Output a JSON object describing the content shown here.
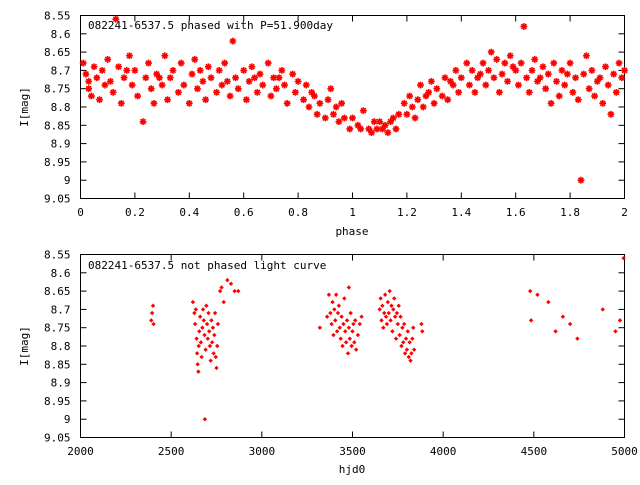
{
  "colors": {
    "marker": "#ff0000",
    "axis": "#000000",
    "background": "#ffffff"
  },
  "chart_data": [
    {
      "type": "scatter",
      "title": "082241-6537.5 phased with P=51.900day",
      "xlabel": "phase",
      "ylabel": "I[mag]",
      "xlim": [
        0,
        2
      ],
      "ylim": [
        9.05,
        8.55
      ],
      "y_inverted": true,
      "grid": false,
      "legend": "none",
      "marker": "star",
      "xticks": [
        0,
        0.2,
        0.4,
        0.6,
        0.8,
        1,
        1.2,
        1.4,
        1.6,
        1.8,
        2
      ],
      "xtick_labels": [
        "0",
        "0.2",
        "0.4",
        "0.6",
        "0.8",
        "1",
        "1.2",
        "1.4",
        "1.6",
        "1.8",
        "2"
      ],
      "yticks": [
        8.55,
        8.6,
        8.65,
        8.7,
        8.75,
        8.8,
        8.85,
        8.9,
        8.95,
        9,
        9.05
      ],
      "ytick_labels": [
        "8.55",
        "8.6",
        "8.65",
        "8.7",
        "8.75",
        "8.8",
        "8.85",
        "8.9",
        "8.95",
        "9",
        "9.05"
      ],
      "points": [
        [
          0.01,
          8.68
        ],
        [
          0.02,
          8.71
        ],
        [
          0.03,
          8.75
        ],
        [
          0.04,
          8.77
        ],
        [
          0.05,
          8.69
        ],
        [
          0.06,
          8.72
        ],
        [
          0.07,
          8.78
        ],
        [
          0.08,
          8.7
        ],
        [
          0.09,
          8.74
        ],
        [
          0.1,
          8.67
        ],
        [
          0.11,
          8.73
        ],
        [
          0.12,
          8.76
        ],
        [
          0.13,
          8.56
        ],
        [
          0.14,
          8.69
        ],
        [
          0.15,
          8.79
        ],
        [
          0.16,
          8.72
        ],
        [
          0.18,
          8.66
        ],
        [
          0.19,
          8.74
        ],
        [
          0.2,
          8.7
        ],
        [
          0.21,
          8.77
        ],
        [
          0.23,
          8.84
        ],
        [
          0.24,
          8.72
        ],
        [
          0.25,
          8.68
        ],
        [
          0.26,
          8.75
        ],
        [
          0.27,
          8.79
        ],
        [
          0.28,
          8.71
        ],
        [
          0.3,
          8.74
        ],
        [
          0.31,
          8.66
        ],
        [
          0.32,
          8.78
        ],
        [
          0.33,
          8.72
        ],
        [
          0.34,
          8.7
        ],
        [
          0.36,
          8.76
        ],
        [
          0.37,
          8.68
        ],
        [
          0.38,
          8.74
        ],
        [
          0.4,
          8.79
        ],
        [
          0.41,
          8.71
        ],
        [
          0.42,
          8.67
        ],
        [
          0.43,
          8.75
        ],
        [
          0.45,
          8.73
        ],
        [
          0.46,
          8.78
        ],
        [
          0.47,
          8.69
        ],
        [
          0.48,
          8.72
        ],
        [
          0.5,
          8.76
        ],
        [
          0.51,
          8.7
        ],
        [
          0.52,
          8.74
        ],
        [
          0.53,
          8.68
        ],
        [
          0.55,
          8.77
        ],
        [
          0.56,
          8.62
        ],
        [
          0.57,
          8.72
        ],
        [
          0.58,
          8.75
        ],
        [
          0.6,
          8.7
        ],
        [
          0.61,
          8.78
        ],
        [
          0.62,
          8.73
        ],
        [
          0.63,
          8.69
        ],
        [
          0.65,
          8.76
        ],
        [
          0.66,
          8.71
        ],
        [
          0.67,
          8.74
        ],
        [
          0.69,
          8.68
        ],
        [
          0.7,
          8.77
        ],
        [
          0.71,
          8.72
        ],
        [
          0.72,
          8.75
        ],
        [
          0.74,
          8.7
        ],
        [
          0.75,
          8.74
        ],
        [
          0.76,
          8.79
        ],
        [
          0.78,
          8.71
        ],
        [
          0.79,
          8.76
        ],
        [
          0.8,
          8.73
        ],
        [
          0.82,
          8.78
        ],
        [
          0.83,
          8.74
        ],
        [
          0.84,
          8.8
        ],
        [
          0.85,
          8.76
        ],
        [
          0.87,
          8.82
        ],
        [
          0.88,
          8.79
        ],
        [
          0.9,
          8.83
        ],
        [
          0.91,
          8.78
        ],
        [
          0.92,
          8.75
        ],
        [
          0.93,
          8.82
        ],
        [
          0.95,
          8.84
        ],
        [
          0.96,
          8.79
        ],
        [
          0.97,
          8.83
        ],
        [
          0.99,
          8.86
        ],
        [
          1.0,
          8.83
        ],
        [
          1.02,
          8.85
        ],
        [
          1.04,
          8.81
        ],
        [
          1.06,
          8.86
        ],
        [
          1.07,
          8.87
        ],
        [
          1.08,
          8.84
        ],
        [
          1.09,
          8.86
        ],
        [
          1.1,
          8.84
        ],
        [
          1.11,
          8.86
        ],
        [
          1.12,
          8.85
        ],
        [
          1.13,
          8.87
        ],
        [
          1.14,
          8.84
        ],
        [
          1.16,
          8.86
        ],
        [
          1.17,
          8.82
        ],
        [
          1.19,
          8.79
        ],
        [
          1.2,
          8.82
        ],
        [
          1.21,
          8.77
        ],
        [
          1.22,
          8.8
        ],
        [
          1.23,
          8.83
        ],
        [
          1.24,
          8.78
        ],
        [
          1.25,
          8.74
        ],
        [
          1.26,
          8.8
        ],
        [
          1.28,
          8.76
        ],
        [
          1.29,
          8.73
        ],
        [
          1.3,
          8.79
        ],
        [
          1.31,
          8.75
        ],
        [
          1.33,
          8.77
        ],
        [
          1.34,
          8.72
        ],
        [
          1.35,
          8.78
        ],
        [
          1.37,
          8.74
        ],
        [
          1.38,
          8.7
        ],
        [
          1.39,
          8.76
        ],
        [
          1.4,
          8.72
        ],
        [
          1.42,
          8.68
        ],
        [
          1.43,
          8.74
        ],
        [
          1.44,
          8.7
        ],
        [
          1.45,
          8.76
        ],
        [
          1.46,
          8.72
        ],
        [
          1.48,
          8.68
        ],
        [
          1.49,
          8.74
        ],
        [
          1.5,
          8.7
        ],
        [
          1.51,
          8.65
        ],
        [
          1.52,
          8.72
        ],
        [
          1.53,
          8.67
        ],
        [
          1.54,
          8.76
        ],
        [
          1.55,
          8.71
        ],
        [
          1.56,
          8.68
        ],
        [
          1.57,
          8.73
        ],
        [
          1.58,
          8.66
        ],
        [
          1.6,
          8.7
        ],
        [
          1.61,
          8.74
        ],
        [
          1.62,
          8.68
        ],
        [
          1.63,
          8.58
        ],
        [
          1.64,
          8.72
        ],
        [
          1.65,
          8.76
        ],
        [
          1.66,
          8.7
        ],
        [
          1.67,
          8.67
        ],
        [
          1.68,
          8.73
        ],
        [
          1.7,
          8.69
        ],
        [
          1.71,
          8.75
        ],
        [
          1.72,
          8.71
        ],
        [
          1.73,
          8.79
        ],
        [
          1.74,
          8.68
        ],
        [
          1.75,
          8.73
        ],
        [
          1.76,
          8.77
        ],
        [
          1.77,
          8.7
        ],
        [
          1.78,
          8.74
        ],
        [
          1.8,
          8.68
        ],
        [
          1.81,
          8.76
        ],
        [
          1.82,
          8.72
        ],
        [
          1.83,
          8.78
        ],
        [
          1.84,
          9.0
        ],
        [
          1.85,
          8.71
        ],
        [
          1.86,
          8.66
        ],
        [
          1.87,
          8.75
        ],
        [
          1.88,
          8.7
        ],
        [
          1.89,
          8.77
        ],
        [
          1.9,
          8.73
        ],
        [
          1.92,
          8.79
        ],
        [
          1.93,
          8.69
        ],
        [
          1.94,
          8.74
        ],
        [
          1.95,
          8.82
        ],
        [
          1.96,
          8.71
        ],
        [
          1.97,
          8.76
        ],
        [
          1.98,
          8.68
        ],
        [
          1.99,
          8.72
        ],
        [
          2.0,
          8.7
        ],
        [
          0.03,
          8.73
        ],
        [
          0.17,
          8.7
        ],
        [
          0.29,
          8.72
        ],
        [
          0.44,
          8.7
        ],
        [
          0.54,
          8.73
        ],
        [
          0.64,
          8.72
        ],
        [
          0.73,
          8.72
        ],
        [
          0.86,
          8.77
        ],
        [
          0.94,
          8.8
        ],
        [
          1.03,
          8.86
        ],
        [
          1.15,
          8.83
        ],
        [
          1.27,
          8.77
        ],
        [
          1.36,
          8.73
        ],
        [
          1.47,
          8.71
        ],
        [
          1.59,
          8.69
        ],
        [
          1.69,
          8.72
        ],
        [
          1.79,
          8.71
        ],
        [
          1.91,
          8.72
        ]
      ]
    },
    {
      "type": "scatter",
      "title": "082241-6537.5 not phased light curve",
      "xlabel": "hjd0",
      "ylabel": "I[mag]",
      "xlim": [
        2000,
        5000
      ],
      "ylim": [
        9.05,
        8.55
      ],
      "y_inverted": true,
      "grid": false,
      "legend": "none",
      "marker": "diamond",
      "xticks": [
        2000,
        2500,
        3000,
        3500,
        4000,
        4500,
        5000
      ],
      "xtick_labels": [
        "2000",
        "2500",
        "3000",
        "3500",
        "4000",
        "4500",
        "5000"
      ],
      "yticks": [
        8.55,
        8.6,
        8.65,
        8.7,
        8.75,
        8.8,
        8.85,
        8.9,
        8.95,
        9,
        9.05
      ],
      "ytick_labels": [
        "8.55",
        "8.6",
        "8.65",
        "8.7",
        "8.75",
        "8.8",
        "8.85",
        "8.9",
        "8.95",
        "9",
        "9.05"
      ],
      "points": [
        [
          2390,
          8.73
        ],
        [
          2395,
          8.71
        ],
        [
          2400,
          8.69
        ],
        [
          2403,
          8.74
        ],
        [
          2620,
          8.68
        ],
        [
          2628,
          8.71
        ],
        [
          2632,
          8.74
        ],
        [
          2636,
          8.7
        ],
        [
          2640,
          8.78
        ],
        [
          2643,
          8.82
        ],
        [
          2646,
          8.85
        ],
        [
          2650,
          8.87
        ],
        [
          2652,
          8.8
        ],
        [
          2655,
          8.76
        ],
        [
          2660,
          8.72
        ],
        [
          2664,
          8.79
        ],
        [
          2668,
          8.83
        ],
        [
          2672,
          8.75
        ],
        [
          2676,
          8.7
        ],
        [
          2680,
          8.73
        ],
        [
          2684,
          8.77
        ],
        [
          2686,
          9.0
        ],
        [
          2690,
          8.81
        ],
        [
          2694,
          8.69
        ],
        [
          2698,
          8.74
        ],
        [
          2702,
          8.78
        ],
        [
          2706,
          8.71
        ],
        [
          2710,
          8.76
        ],
        [
          2714,
          8.8
        ],
        [
          2718,
          8.84
        ],
        [
          2722,
          8.73
        ],
        [
          2726,
          8.79
        ],
        [
          2730,
          8.75
        ],
        [
          2734,
          8.82
        ],
        [
          2738,
          8.77
        ],
        [
          2742,
          8.71
        ],
        [
          2746,
          8.83
        ],
        [
          2750,
          8.86
        ],
        [
          2754,
          8.8
        ],
        [
          2758,
          8.74
        ],
        [
          2770,
          8.65
        ],
        [
          2778,
          8.64
        ],
        [
          2790,
          8.68
        ],
        [
          2810,
          8.62
        ],
        [
          2830,
          8.63
        ],
        [
          2850,
          8.65
        ],
        [
          2870,
          8.65
        ],
        [
          3320,
          8.75
        ],
        [
          3360,
          8.72
        ],
        [
          3370,
          8.66
        ],
        [
          3378,
          8.71
        ],
        [
          3385,
          8.74
        ],
        [
          3390,
          8.68
        ],
        [
          3395,
          8.77
        ],
        [
          3400,
          8.7
        ],
        [
          3405,
          8.73
        ],
        [
          3410,
          8.66
        ],
        [
          3415,
          8.76
        ],
        [
          3420,
          8.71
        ],
        [
          3425,
          8.69
        ],
        [
          3430,
          8.75
        ],
        [
          3435,
          8.78
        ],
        [
          3440,
          8.72
        ],
        [
          3445,
          8.8
        ],
        [
          3450,
          8.74
        ],
        [
          3455,
          8.67
        ],
        [
          3460,
          8.76
        ],
        [
          3465,
          8.79
        ],
        [
          3470,
          8.73
        ],
        [
          3475,
          8.82
        ],
        [
          3480,
          8.75
        ],
        [
          3485,
          8.78
        ],
        [
          3490,
          8.71
        ],
        [
          3495,
          8.8
        ],
        [
          3500,
          8.76
        ],
        [
          3505,
          8.74
        ],
        [
          3510,
          8.79
        ],
        [
          3515,
          8.73
        ],
        [
          3520,
          8.81
        ],
        [
          3530,
          8.77
        ],
        [
          3540,
          8.74
        ],
        [
          3550,
          8.72
        ],
        [
          3480,
          8.64
        ],
        [
          3650,
          8.7
        ],
        [
          3655,
          8.67
        ],
        [
          3660,
          8.73
        ],
        [
          3665,
          8.69
        ],
        [
          3670,
          8.75
        ],
        [
          3675,
          8.71
        ],
        [
          3680,
          8.66
        ],
        [
          3685,
          8.72
        ],
        [
          3690,
          8.74
        ],
        [
          3695,
          8.68
        ],
        [
          3700,
          8.71
        ],
        [
          3705,
          8.65
        ],
        [
          3710,
          8.73
        ],
        [
          3715,
          8.69
        ],
        [
          3720,
          8.76
        ],
        [
          3725,
          8.7
        ],
        [
          3730,
          8.67
        ],
        [
          3735,
          8.72
        ],
        [
          3740,
          8.78
        ],
        [
          3745,
          8.71
        ],
        [
          3750,
          8.74
        ],
        [
          3755,
          8.69
        ],
        [
          3760,
          8.77
        ],
        [
          3765,
          8.72
        ],
        [
          3770,
          8.8
        ],
        [
          3775,
          8.75
        ],
        [
          3780,
          8.79
        ],
        [
          3785,
          8.74
        ],
        [
          3790,
          8.82
        ],
        [
          3795,
          8.78
        ],
        [
          3800,
          8.81
        ],
        [
          3805,
          8.76
        ],
        [
          3810,
          8.83
        ],
        [
          3815,
          8.79
        ],
        [
          3820,
          8.84
        ],
        [
          3825,
          8.82
        ],
        [
          3830,
          8.78
        ],
        [
          3835,
          8.75
        ],
        [
          3840,
          8.81
        ],
        [
          3880,
          8.74
        ],
        [
          3885,
          8.76
        ],
        [
          4480,
          8.65
        ],
        [
          4485,
          8.73
        ],
        [
          4520,
          8.66
        ],
        [
          4580,
          8.68
        ],
        [
          4620,
          8.76
        ],
        [
          4660,
          8.72
        ],
        [
          4700,
          8.74
        ],
        [
          4740,
          8.78
        ],
        [
          4880,
          8.7
        ],
        [
          4950,
          8.76
        ],
        [
          4975,
          8.73
        ],
        [
          4995,
          8.56
        ]
      ]
    }
  ]
}
